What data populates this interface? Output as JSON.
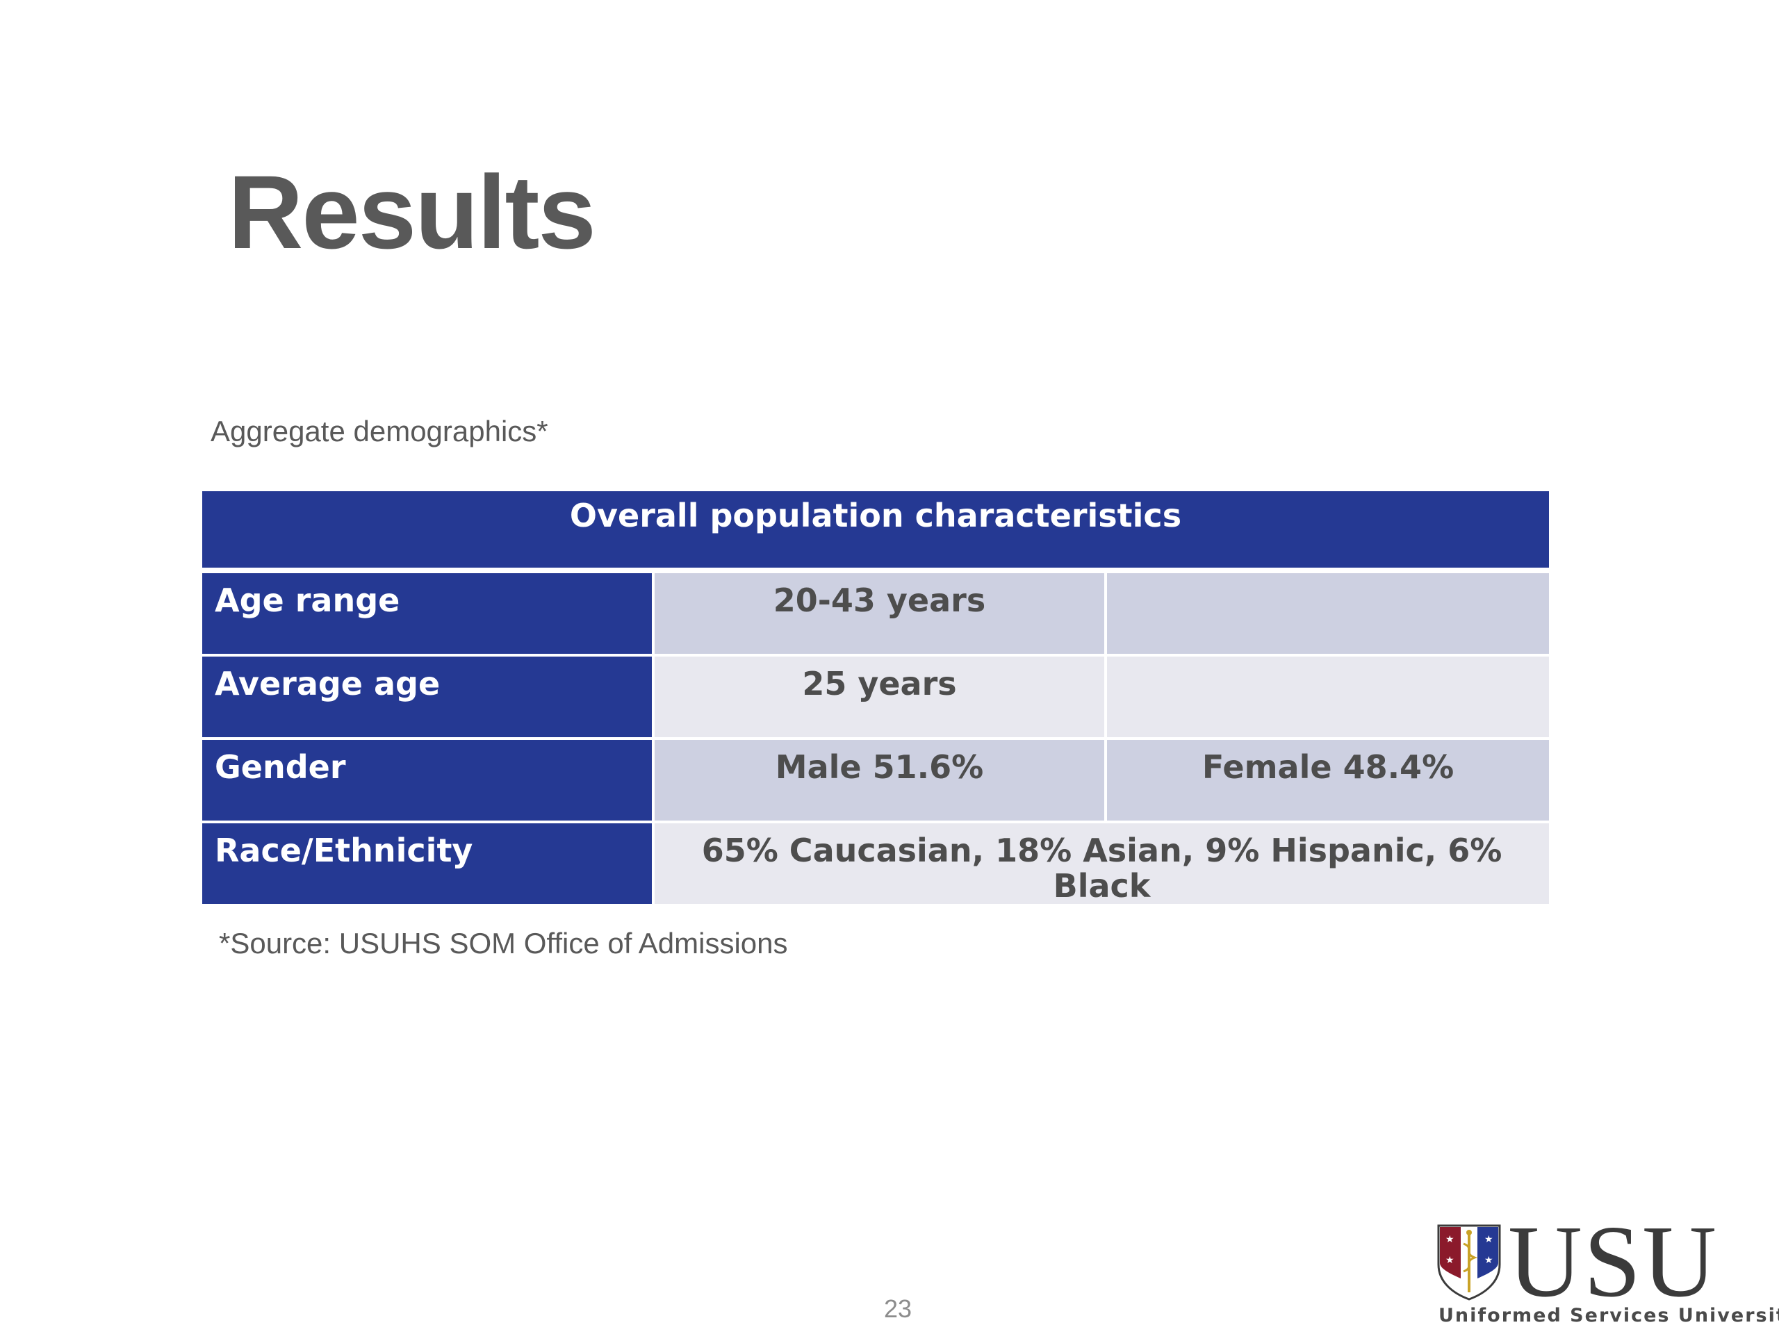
{
  "slide": {
    "title": "Results",
    "subtitle": "Aggregate demographics*",
    "source_note": "*Source: USUHS SOM Office of Admissions",
    "page_number": "23"
  },
  "table": {
    "header": "Overall population characteristics",
    "rows": [
      {
        "label": "Age range",
        "col1": "20-43 years",
        "col2": ""
      },
      {
        "label": "Average age",
        "col1": "25 years",
        "col2": ""
      },
      {
        "label": "Gender",
        "col1": "Male 51.6%",
        "col2": "Female 48.4%"
      },
      {
        "label": "Race/Ethnicity",
        "merged": "65% Caucasian, 18% Asian, 9% Hispanic, 6% Black"
      }
    ]
  },
  "logo": {
    "wordmark": "USU",
    "caption": "Uniformed Services University"
  },
  "colors": {
    "header_blue": "#253993",
    "row_light_blue": "#cdd0e1",
    "row_light_gray": "#e8e8ef",
    "text_gray": "#595959",
    "shield_red": "#8b1a2b",
    "shield_blue": "#253993",
    "shield_gold": "#c9a227"
  }
}
